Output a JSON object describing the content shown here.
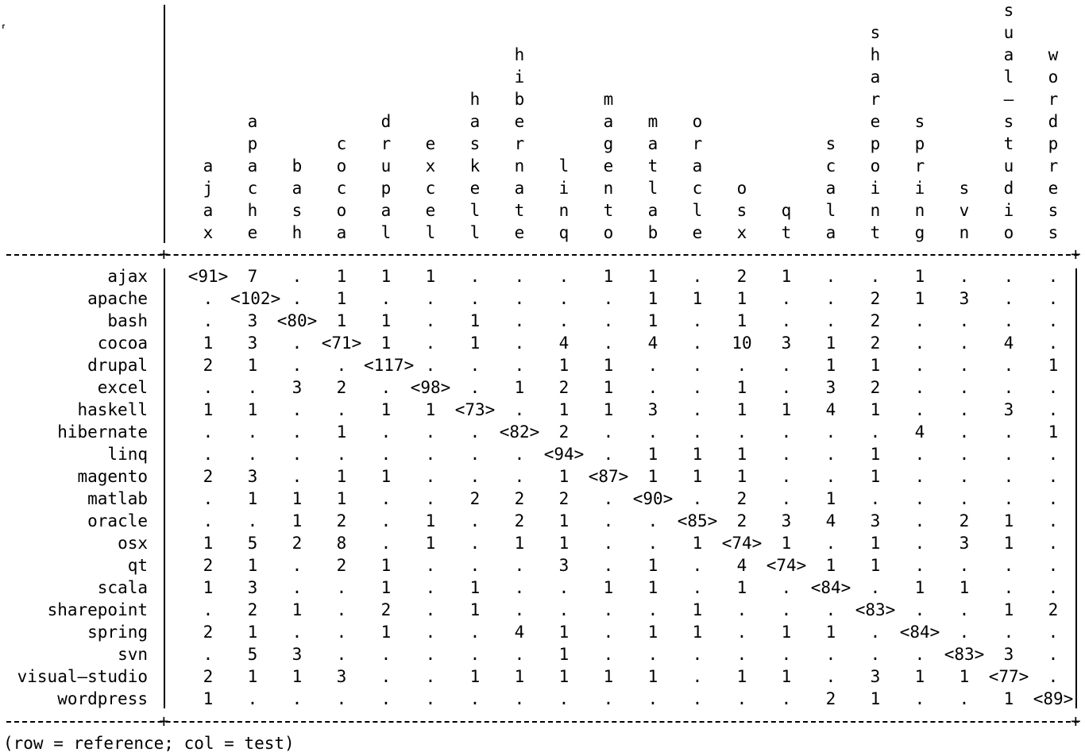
{
  "corner_mark": "⸢",
  "columns": [
    "ajax",
    "apache",
    "bash",
    "cocoa",
    "drupal",
    "excel",
    "haskell",
    "hibernate",
    "linq",
    "magento",
    "matlab",
    "oracle",
    "osx",
    "qt",
    "scala",
    "sharepoint",
    "spring",
    "svn",
    "visual–studio",
    "wordpress"
  ],
  "rows": [
    {
      "label": "ajax",
      "cells": [
        "<91>",
        "7",
        ".",
        "1",
        "1",
        "1",
        ".",
        ".",
        ".",
        "1",
        "1",
        ".",
        "2",
        "1",
        ".",
        ".",
        "1",
        ".",
        ".",
        "."
      ]
    },
    {
      "label": "apache",
      "cells": [
        ".",
        "<102>",
        ".",
        "1",
        ".",
        ".",
        ".",
        ".",
        ".",
        ".",
        "1",
        "1",
        "1",
        ".",
        ".",
        "2",
        "1",
        "3",
        ".",
        "."
      ]
    },
    {
      "label": "bash",
      "cells": [
        ".",
        "3",
        "<80>",
        "1",
        "1",
        ".",
        "1",
        ".",
        ".",
        ".",
        "1",
        ".",
        "1",
        ".",
        ".",
        "2",
        ".",
        ".",
        ".",
        "."
      ]
    },
    {
      "label": "cocoa",
      "cells": [
        "1",
        "3",
        ".",
        "<71>",
        "1",
        ".",
        "1",
        ".",
        "4",
        ".",
        "4",
        ".",
        "10",
        "3",
        "1",
        "2",
        ".",
        ".",
        "4",
        "."
      ]
    },
    {
      "label": "drupal",
      "cells": [
        "2",
        "1",
        ".",
        ".",
        "<117>",
        ".",
        ".",
        ".",
        "1",
        "1",
        ".",
        ".",
        ".",
        ".",
        "1",
        "1",
        ".",
        ".",
        ".",
        "1"
      ]
    },
    {
      "label": "excel",
      "cells": [
        ".",
        ".",
        "3",
        "2",
        ".",
        "<98>",
        ".",
        "1",
        "2",
        "1",
        ".",
        ".",
        "1",
        ".",
        "3",
        "2",
        ".",
        ".",
        ".",
        "."
      ]
    },
    {
      "label": "haskell",
      "cells": [
        "1",
        "1",
        ".",
        ".",
        "1",
        "1",
        "<73>",
        ".",
        "1",
        "1",
        "3",
        ".",
        "1",
        "1",
        "4",
        "1",
        ".",
        ".",
        "3",
        "."
      ]
    },
    {
      "label": "hibernate",
      "cells": [
        ".",
        ".",
        ".",
        "1",
        ".",
        ".",
        ".",
        "<82>",
        "2",
        ".",
        ".",
        ".",
        ".",
        ".",
        ".",
        ".",
        "4",
        ".",
        ".",
        "1"
      ]
    },
    {
      "label": "linq",
      "cells": [
        ".",
        ".",
        ".",
        ".",
        ".",
        ".",
        ".",
        ".",
        "<94>",
        ".",
        "1",
        "1",
        "1",
        ".",
        ".",
        "1",
        ".",
        ".",
        ".",
        "."
      ]
    },
    {
      "label": "magento",
      "cells": [
        "2",
        "3",
        ".",
        "1",
        "1",
        ".",
        ".",
        ".",
        "1",
        "<87>",
        "1",
        "1",
        "1",
        ".",
        ".",
        "1",
        ".",
        ".",
        ".",
        "."
      ]
    },
    {
      "label": "matlab",
      "cells": [
        ".",
        "1",
        "1",
        "1",
        ".",
        ".",
        "2",
        "2",
        "2",
        ".",
        "<90>",
        ".",
        "2",
        ".",
        "1",
        ".",
        ".",
        ".",
        ".",
        "."
      ]
    },
    {
      "label": "oracle",
      "cells": [
        ".",
        ".",
        "1",
        "2",
        ".",
        "1",
        ".",
        "2",
        "1",
        ".",
        ".",
        "<85>",
        "2",
        "3",
        "4",
        "3",
        ".",
        "2",
        "1",
        "."
      ]
    },
    {
      "label": "osx",
      "cells": [
        "1",
        "5",
        "2",
        "8",
        ".",
        "1",
        ".",
        "1",
        "1",
        ".",
        ".",
        "1",
        "<74>",
        "1",
        ".",
        "1",
        ".",
        "3",
        "1",
        "."
      ]
    },
    {
      "label": "qt",
      "cells": [
        "2",
        "1",
        ".",
        "2",
        "1",
        ".",
        ".",
        ".",
        "3",
        ".",
        "1",
        ".",
        "4",
        "<74>",
        "1",
        "1",
        ".",
        ".",
        ".",
        "."
      ]
    },
    {
      "label": "scala",
      "cells": [
        "1",
        "3",
        ".",
        ".",
        "1",
        ".",
        "1",
        ".",
        ".",
        "1",
        "1",
        ".",
        "1",
        ".",
        "<84>",
        ".",
        "1",
        "1",
        ".",
        "."
      ]
    },
    {
      "label": "sharepoint",
      "cells": [
        ".",
        "2",
        "1",
        ".",
        "2",
        ".",
        "1",
        ".",
        ".",
        ".",
        ".",
        "1",
        ".",
        ".",
        ".",
        "<83>",
        ".",
        ".",
        "1",
        "2"
      ]
    },
    {
      "label": "spring",
      "cells": [
        "2",
        "1",
        ".",
        ".",
        "1",
        ".",
        ".",
        "4",
        "1",
        ".",
        "1",
        "1",
        ".",
        "1",
        "1",
        ".",
        "<84>",
        ".",
        ".",
        "."
      ]
    },
    {
      "label": "svn",
      "cells": [
        ".",
        "5",
        "3",
        ".",
        ".",
        ".",
        ".",
        ".",
        "1",
        ".",
        ".",
        ".",
        ".",
        ".",
        ".",
        ".",
        ".",
        "<83>",
        "3",
        "."
      ]
    },
    {
      "label": "visual–studio",
      "cells": [
        "2",
        "1",
        "1",
        "3",
        ".",
        ".",
        "1",
        "1",
        "1",
        "1",
        "1",
        ".",
        "1",
        "1",
        ".",
        "3",
        "1",
        "1",
        "<77>",
        "."
      ]
    },
    {
      "label": "wordpress",
      "cells": [
        "1",
        ".",
        ".",
        ".",
        ".",
        ".",
        ".",
        ".",
        ".",
        ".",
        ".",
        ".",
        ".",
        ".",
        "2",
        "1",
        ".",
        ".",
        "1",
        "<89>"
      ]
    }
  ],
  "footnote": "(row = reference; col = test)"
}
